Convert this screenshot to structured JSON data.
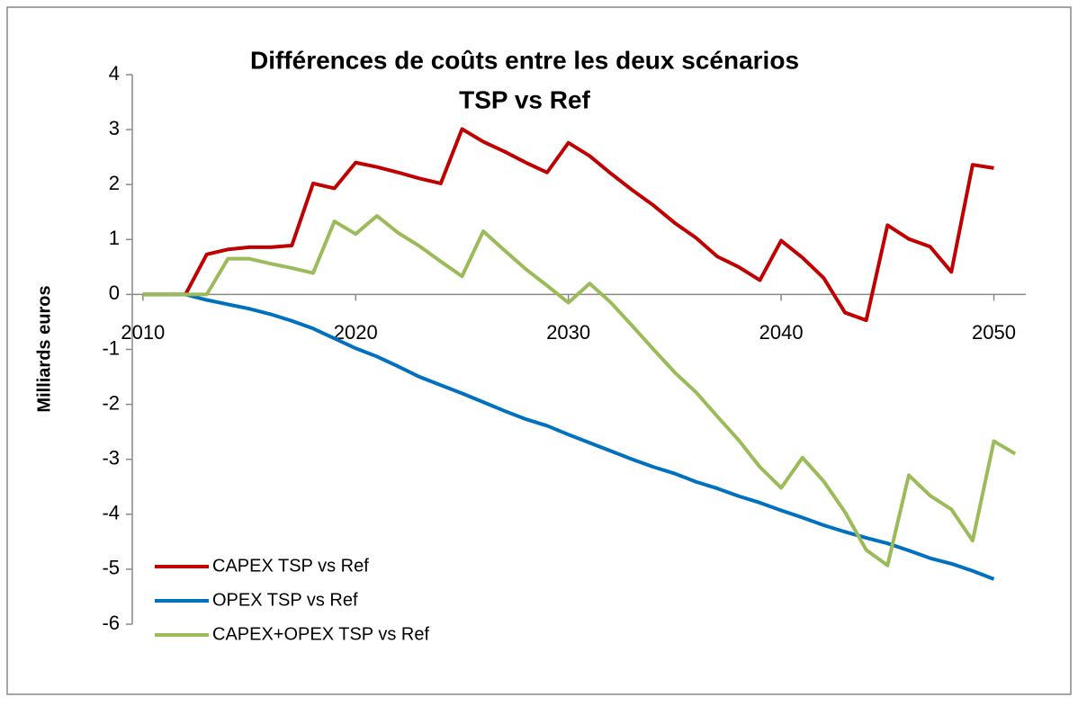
{
  "chart_data": {
    "type": "line",
    "title": [
      "Différences de coûts entre les deux scénarios",
      "TSP vs Ref"
    ],
    "y_label": "Milliards euros",
    "x": [
      2010,
      2011,
      2012,
      2013,
      2014,
      2015,
      2016,
      2017,
      2018,
      2019,
      2020,
      2021,
      2022,
      2023,
      2024,
      2025,
      2026,
      2027,
      2028,
      2029,
      2030,
      2031,
      2032,
      2033,
      2034,
      2035,
      2036,
      2037,
      2038,
      2039,
      2040,
      2041,
      2042,
      2043,
      2044,
      2045,
      2046,
      2047,
      2048,
      2049,
      2050,
      2051
    ],
    "xlim": [
      2009.5,
      2051.5
    ],
    "xticks": [
      2010,
      2020,
      2030,
      2040,
      2050
    ],
    "ylim": [
      -6,
      4
    ],
    "yticks": [
      -6,
      -5,
      -4,
      -3,
      -2,
      -1,
      0,
      1,
      2,
      3,
      4
    ],
    "legend": "lower-left",
    "series": [
      {
        "name": "CAPEX TSP vs Ref",
        "color": "#c00000",
        "values": [
          0,
          0,
          0,
          0.73,
          0.82,
          0.86,
          0.86,
          0.89,
          2.02,
          1.93,
          2.4,
          2.32,
          2.22,
          2.11,
          2.02,
          3.01,
          2.78,
          2.6,
          2.4,
          2.22,
          2.76,
          2.52,
          2.2,
          1.9,
          1.62,
          1.3,
          1.03,
          0.69,
          0.5,
          0.26,
          0.98,
          0.67,
          0.3,
          -0.33,
          -0.47,
          1.26,
          1.01,
          0.87,
          0.41,
          2.36,
          2.3,
          null
        ]
      },
      {
        "name": "OPEX TSP vs Ref",
        "color": "#0070c0",
        "values": [
          0,
          0,
          0,
          -0.1,
          -0.18,
          -0.26,
          -0.36,
          -0.48,
          -0.62,
          -0.8,
          -0.98,
          -1.13,
          -1.31,
          -1.5,
          -1.65,
          -1.8,
          -1.96,
          -2.12,
          -2.27,
          -2.39,
          -2.55,
          -2.7,
          -2.85,
          -3.0,
          -3.14,
          -3.26,
          -3.41,
          -3.53,
          -3.67,
          -3.79,
          -3.93,
          -4.06,
          -4.2,
          -4.32,
          -4.43,
          -4.53,
          -4.66,
          -4.8,
          -4.9,
          -5.03,
          -5.18,
          null
        ]
      },
      {
        "name": "CAPEX+OPEX TSP vs Ref",
        "color": "#9bbb59",
        "values": [
          0,
          0,
          0,
          0,
          0.65,
          0.65,
          0.56,
          0.48,
          0.39,
          1.33,
          1.1,
          1.43,
          1.12,
          0.88,
          0.6,
          0.33,
          1.15,
          0.8,
          0.46,
          0.16,
          -0.15,
          0.2,
          -0.15,
          -0.57,
          -1.0,
          -1.42,
          -1.78,
          -2.22,
          -2.65,
          -3.14,
          -3.52,
          -2.97,
          -3.4,
          -3.96,
          -4.65,
          -4.93,
          -3.29,
          -3.66,
          -3.91,
          -4.48,
          -2.67,
          -2.9
        ]
      }
    ]
  }
}
